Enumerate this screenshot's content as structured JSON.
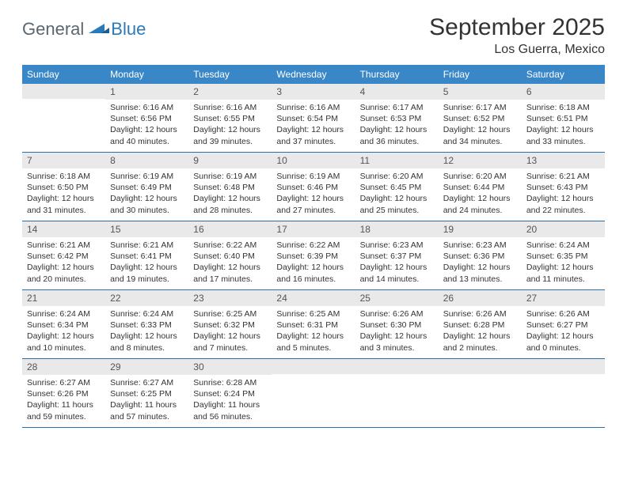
{
  "logo": {
    "general": "General",
    "blue": "Blue"
  },
  "title": "September 2025",
  "location": "Los Guerra, Mexico",
  "weekdays": [
    "Sunday",
    "Monday",
    "Tuesday",
    "Wednesday",
    "Thursday",
    "Friday",
    "Saturday"
  ],
  "colors": {
    "header_bg": "#3a87c7",
    "header_text": "#ffffff",
    "daynum_bg": "#e9e9e9",
    "week_border": "#2a6fa8",
    "logo_gray": "#5b6770",
    "logo_blue": "#2a7ab9",
    "body_text": "#333333",
    "page_bg": "#ffffff"
  },
  "weeks": [
    [
      {
        "n": "",
        "sunrise": "",
        "sunset": "",
        "daylight": ""
      },
      {
        "n": "1",
        "sunrise": "Sunrise: 6:16 AM",
        "sunset": "Sunset: 6:56 PM",
        "daylight": "Daylight: 12 hours and 40 minutes."
      },
      {
        "n": "2",
        "sunrise": "Sunrise: 6:16 AM",
        "sunset": "Sunset: 6:55 PM",
        "daylight": "Daylight: 12 hours and 39 minutes."
      },
      {
        "n": "3",
        "sunrise": "Sunrise: 6:16 AM",
        "sunset": "Sunset: 6:54 PM",
        "daylight": "Daylight: 12 hours and 37 minutes."
      },
      {
        "n": "4",
        "sunrise": "Sunrise: 6:17 AM",
        "sunset": "Sunset: 6:53 PM",
        "daylight": "Daylight: 12 hours and 36 minutes."
      },
      {
        "n": "5",
        "sunrise": "Sunrise: 6:17 AM",
        "sunset": "Sunset: 6:52 PM",
        "daylight": "Daylight: 12 hours and 34 minutes."
      },
      {
        "n": "6",
        "sunrise": "Sunrise: 6:18 AM",
        "sunset": "Sunset: 6:51 PM",
        "daylight": "Daylight: 12 hours and 33 minutes."
      }
    ],
    [
      {
        "n": "7",
        "sunrise": "Sunrise: 6:18 AM",
        "sunset": "Sunset: 6:50 PM",
        "daylight": "Daylight: 12 hours and 31 minutes."
      },
      {
        "n": "8",
        "sunrise": "Sunrise: 6:19 AM",
        "sunset": "Sunset: 6:49 PM",
        "daylight": "Daylight: 12 hours and 30 minutes."
      },
      {
        "n": "9",
        "sunrise": "Sunrise: 6:19 AM",
        "sunset": "Sunset: 6:48 PM",
        "daylight": "Daylight: 12 hours and 28 minutes."
      },
      {
        "n": "10",
        "sunrise": "Sunrise: 6:19 AM",
        "sunset": "Sunset: 6:46 PM",
        "daylight": "Daylight: 12 hours and 27 minutes."
      },
      {
        "n": "11",
        "sunrise": "Sunrise: 6:20 AM",
        "sunset": "Sunset: 6:45 PM",
        "daylight": "Daylight: 12 hours and 25 minutes."
      },
      {
        "n": "12",
        "sunrise": "Sunrise: 6:20 AM",
        "sunset": "Sunset: 6:44 PM",
        "daylight": "Daylight: 12 hours and 24 minutes."
      },
      {
        "n": "13",
        "sunrise": "Sunrise: 6:21 AM",
        "sunset": "Sunset: 6:43 PM",
        "daylight": "Daylight: 12 hours and 22 minutes."
      }
    ],
    [
      {
        "n": "14",
        "sunrise": "Sunrise: 6:21 AM",
        "sunset": "Sunset: 6:42 PM",
        "daylight": "Daylight: 12 hours and 20 minutes."
      },
      {
        "n": "15",
        "sunrise": "Sunrise: 6:21 AM",
        "sunset": "Sunset: 6:41 PM",
        "daylight": "Daylight: 12 hours and 19 minutes."
      },
      {
        "n": "16",
        "sunrise": "Sunrise: 6:22 AM",
        "sunset": "Sunset: 6:40 PM",
        "daylight": "Daylight: 12 hours and 17 minutes."
      },
      {
        "n": "17",
        "sunrise": "Sunrise: 6:22 AM",
        "sunset": "Sunset: 6:39 PM",
        "daylight": "Daylight: 12 hours and 16 minutes."
      },
      {
        "n": "18",
        "sunrise": "Sunrise: 6:23 AM",
        "sunset": "Sunset: 6:37 PM",
        "daylight": "Daylight: 12 hours and 14 minutes."
      },
      {
        "n": "19",
        "sunrise": "Sunrise: 6:23 AM",
        "sunset": "Sunset: 6:36 PM",
        "daylight": "Daylight: 12 hours and 13 minutes."
      },
      {
        "n": "20",
        "sunrise": "Sunrise: 6:24 AM",
        "sunset": "Sunset: 6:35 PM",
        "daylight": "Daylight: 12 hours and 11 minutes."
      }
    ],
    [
      {
        "n": "21",
        "sunrise": "Sunrise: 6:24 AM",
        "sunset": "Sunset: 6:34 PM",
        "daylight": "Daylight: 12 hours and 10 minutes."
      },
      {
        "n": "22",
        "sunrise": "Sunrise: 6:24 AM",
        "sunset": "Sunset: 6:33 PM",
        "daylight": "Daylight: 12 hours and 8 minutes."
      },
      {
        "n": "23",
        "sunrise": "Sunrise: 6:25 AM",
        "sunset": "Sunset: 6:32 PM",
        "daylight": "Daylight: 12 hours and 7 minutes."
      },
      {
        "n": "24",
        "sunrise": "Sunrise: 6:25 AM",
        "sunset": "Sunset: 6:31 PM",
        "daylight": "Daylight: 12 hours and 5 minutes."
      },
      {
        "n": "25",
        "sunrise": "Sunrise: 6:26 AM",
        "sunset": "Sunset: 6:30 PM",
        "daylight": "Daylight: 12 hours and 3 minutes."
      },
      {
        "n": "26",
        "sunrise": "Sunrise: 6:26 AM",
        "sunset": "Sunset: 6:28 PM",
        "daylight": "Daylight: 12 hours and 2 minutes."
      },
      {
        "n": "27",
        "sunrise": "Sunrise: 6:26 AM",
        "sunset": "Sunset: 6:27 PM",
        "daylight": "Daylight: 12 hours and 0 minutes."
      }
    ],
    [
      {
        "n": "28",
        "sunrise": "Sunrise: 6:27 AM",
        "sunset": "Sunset: 6:26 PM",
        "daylight": "Daylight: 11 hours and 59 minutes."
      },
      {
        "n": "29",
        "sunrise": "Sunrise: 6:27 AM",
        "sunset": "Sunset: 6:25 PM",
        "daylight": "Daylight: 11 hours and 57 minutes."
      },
      {
        "n": "30",
        "sunrise": "Sunrise: 6:28 AM",
        "sunset": "Sunset: 6:24 PM",
        "daylight": "Daylight: 11 hours and 56 minutes."
      },
      {
        "n": "",
        "sunrise": "",
        "sunset": "",
        "daylight": ""
      },
      {
        "n": "",
        "sunrise": "",
        "sunset": "",
        "daylight": ""
      },
      {
        "n": "",
        "sunrise": "",
        "sunset": "",
        "daylight": ""
      },
      {
        "n": "",
        "sunrise": "",
        "sunset": "",
        "daylight": ""
      }
    ]
  ]
}
